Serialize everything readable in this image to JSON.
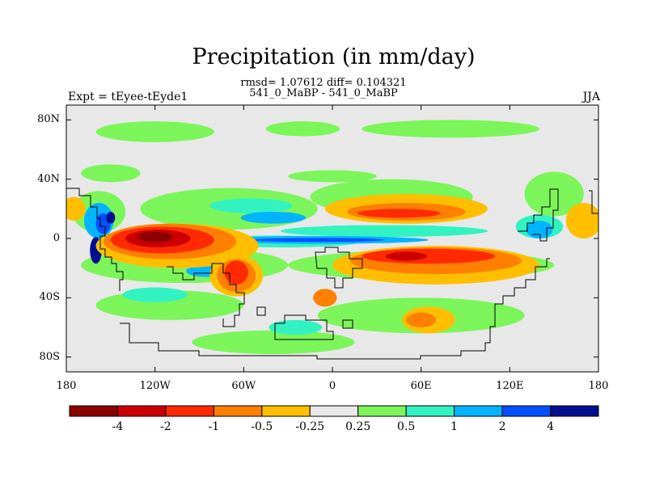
{
  "title": "Precipitation (in mm/day)",
  "subtitle_line1": "rmsd= 1.07612 diff= 0.104321",
  "subtitle_line2": "541_0_MaBP - 541_0_MaBP",
  "left_label": "Expt = tEyee-tEyde1",
  "right_label": "JJA",
  "chart_data": {
    "type": "heatmap",
    "projection": "cylindrical-equidistant",
    "xlim": [
      -180,
      180
    ],
    "ylim": [
      -90,
      90
    ],
    "x_ticks": [
      {
        "value": -180,
        "label": "180"
      },
      {
        "value": -120,
        "label": "120W"
      },
      {
        "value": -60,
        "label": "60W"
      },
      {
        "value": 0,
        "label": "0"
      },
      {
        "value": 60,
        "label": "60E"
      },
      {
        "value": 120,
        "label": "120E"
      },
      {
        "value": 180,
        "label": "180"
      }
    ],
    "y_ticks": [
      {
        "value": 80,
        "label": "80N"
      },
      {
        "value": 40,
        "label": "40N"
      },
      {
        "value": 0,
        "label": "0"
      },
      {
        "value": -40,
        "label": "40S"
      },
      {
        "value": -80,
        "label": "80S"
      }
    ],
    "colorbar": {
      "orientation": "horizontal",
      "colors": [
        "#8b0000",
        "#cc0000",
        "#ff2a00",
        "#ff7f00",
        "#ffbf00",
        "#e8e8e8",
        "#7cf55a",
        "#33f2c2",
        "#00b4ff",
        "#0050ff",
        "#000f8f"
      ],
      "labels": [
        "-4",
        "-2",
        "-1",
        "-0.5",
        "-0.25",
        "0.25",
        "0.5",
        "1",
        "2",
        "4"
      ]
    },
    "features": [
      {
        "class": 6,
        "lon": -120,
        "lat": 72,
        "rx": 40,
        "ry": 7
      },
      {
        "class": 6,
        "lon": -20,
        "lat": 74,
        "rx": 25,
        "ry": 5
      },
      {
        "class": 6,
        "lon": 80,
        "lat": 74,
        "rx": 60,
        "ry": 6
      },
      {
        "class": 6,
        "lon": -150,
        "lat": 44,
        "rx": 20,
        "ry": 6
      },
      {
        "class": 6,
        "lon": 0,
        "lat": 42,
        "rx": 30,
        "ry": 4
      },
      {
        "class": 6,
        "lon": 150,
        "lat": 30,
        "rx": 20,
        "ry": 15
      },
      {
        "class": 6,
        "lon": -70,
        "lat": 20,
        "rx": 60,
        "ry": 14
      },
      {
        "class": 6,
        "lon": 40,
        "lat": 28,
        "rx": 55,
        "ry": 12
      },
      {
        "class": 6,
        "lon": -100,
        "lat": -18,
        "rx": 70,
        "ry": 12
      },
      {
        "class": 6,
        "lon": 60,
        "lat": -18,
        "rx": 90,
        "ry": 10
      },
      {
        "class": 6,
        "lon": -110,
        "lat": -45,
        "rx": 50,
        "ry": 10
      },
      {
        "class": 6,
        "lon": 60,
        "lat": -52,
        "rx": 70,
        "ry": 12
      },
      {
        "class": 6,
        "lon": -40,
        "lat": -70,
        "rx": 55,
        "ry": 8
      },
      {
        "class": 6,
        "lon": -158,
        "lat": 18,
        "rx": 18,
        "ry": 14
      },
      {
        "class": 7,
        "lon": -55,
        "lat": 22,
        "rx": 28,
        "ry": 5
      },
      {
        "class": 7,
        "lon": 35,
        "lat": 5,
        "rx": 70,
        "ry": 4
      },
      {
        "class": 7,
        "lon": -35,
        "lat": -2,
        "rx": 55,
        "ry": 4
      },
      {
        "class": 7,
        "lon": -120,
        "lat": -38,
        "rx": 22,
        "ry": 5
      },
      {
        "class": 7,
        "lon": -25,
        "lat": -60,
        "rx": 18,
        "ry": 5
      },
      {
        "class": 7,
        "lon": 140,
        "lat": 8,
        "rx": 16,
        "ry": 8
      },
      {
        "class": 8,
        "lon": -40,
        "lat": 14,
        "rx": 22,
        "ry": 4
      },
      {
        "class": 8,
        "lon": -10,
        "lat": -1,
        "rx": 75,
        "ry": 2.6
      },
      {
        "class": 8,
        "lon": -158,
        "lat": 12,
        "rx": 10,
        "ry": 12
      },
      {
        "class": 8,
        "lon": -85,
        "lat": -22,
        "rx": 14,
        "ry": 4
      },
      {
        "class": 8,
        "lon": 140,
        "lat": 6,
        "rx": 9,
        "ry": 6
      },
      {
        "class": 9,
        "lon": -155,
        "lat": 10,
        "rx": 5,
        "ry": 7
      },
      {
        "class": 9,
        "lon": -10,
        "lat": -1,
        "rx": 45,
        "ry": 1.3
      },
      {
        "class": 10,
        "lon": -160,
        "lat": -8,
        "rx": 4,
        "ry": 9
      },
      {
        "class": 10,
        "lon": -150,
        "lat": 14,
        "rx": 3,
        "ry": 4
      },
      {
        "class": 4,
        "lon": -175,
        "lat": 20,
        "rx": 8,
        "ry": 8
      },
      {
        "class": 4,
        "lon": -105,
        "lat": -5,
        "rx": 55,
        "ry": 15
      },
      {
        "class": 4,
        "lon": 70,
        "lat": -18,
        "rx": 70,
        "ry": 13
      },
      {
        "class": 4,
        "lon": 50,
        "lat": 20,
        "rx": 55,
        "ry": 10
      },
      {
        "class": 4,
        "lon": -65,
        "lat": -25,
        "rx": 18,
        "ry": 14
      },
      {
        "class": 4,
        "lon": 65,
        "lat": -55,
        "rx": 18,
        "ry": 9
      },
      {
        "class": 4,
        "lon": 170,
        "lat": 12,
        "rx": 12,
        "ry": 12
      },
      {
        "class": 3,
        "lon": -110,
        "lat": -2,
        "rx": 45,
        "ry": 12
      },
      {
        "class": 3,
        "lon": 70,
        "lat": -15,
        "rx": 58,
        "ry": 9
      },
      {
        "class": 3,
        "lon": 50,
        "lat": 18,
        "rx": 40,
        "ry": 6
      },
      {
        "class": 3,
        "lon": -65,
        "lat": -25,
        "rx": 13,
        "ry": 11
      },
      {
        "class": 3,
        "lon": 60,
        "lat": -55,
        "rx": 10,
        "ry": 5
      },
      {
        "class": 3,
        "lon": -5,
        "lat": -40,
        "rx": 8,
        "ry": 6
      },
      {
        "class": 2,
        "lon": -115,
        "lat": -1,
        "rx": 35,
        "ry": 9
      },
      {
        "class": 2,
        "lon": 65,
        "lat": -12,
        "rx": 45,
        "ry": 5
      },
      {
        "class": 2,
        "lon": 45,
        "lat": 17,
        "rx": 28,
        "ry": 3
      },
      {
        "class": 2,
        "lon": -65,
        "lat": -23,
        "rx": 8,
        "ry": 8
      },
      {
        "class": 1,
        "lon": -118,
        "lat": 0,
        "rx": 22,
        "ry": 6
      },
      {
        "class": 1,
        "lon": 50,
        "lat": -12,
        "rx": 14,
        "ry": 3
      },
      {
        "class": 0,
        "lon": -120,
        "lat": 1,
        "rx": 12,
        "ry": 3.5
      }
    ]
  }
}
